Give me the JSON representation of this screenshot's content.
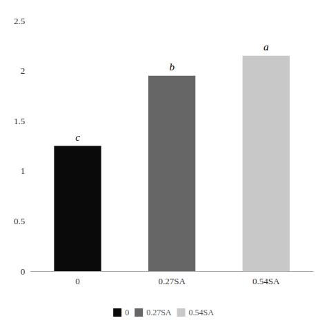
{
  "chart_data": {
    "type": "bar",
    "categories": [
      "0",
      "0.27SA",
      "0.54SA"
    ],
    "values": [
      1.25,
      1.95,
      2.15
    ],
    "colors": [
      "#0a0a0a",
      "#666666",
      "#c8c8c8"
    ],
    "annotations": [
      {
        "category": "0",
        "text": "c"
      },
      {
        "category": "0.27SA",
        "text": "b"
      },
      {
        "category": "0.54SA",
        "text": "a"
      }
    ],
    "ylim": [
      0,
      2.5
    ],
    "yticks": [
      0,
      0.5,
      1,
      1.5,
      2,
      2.5
    ],
    "grid": false,
    "legend": "bottom"
  }
}
